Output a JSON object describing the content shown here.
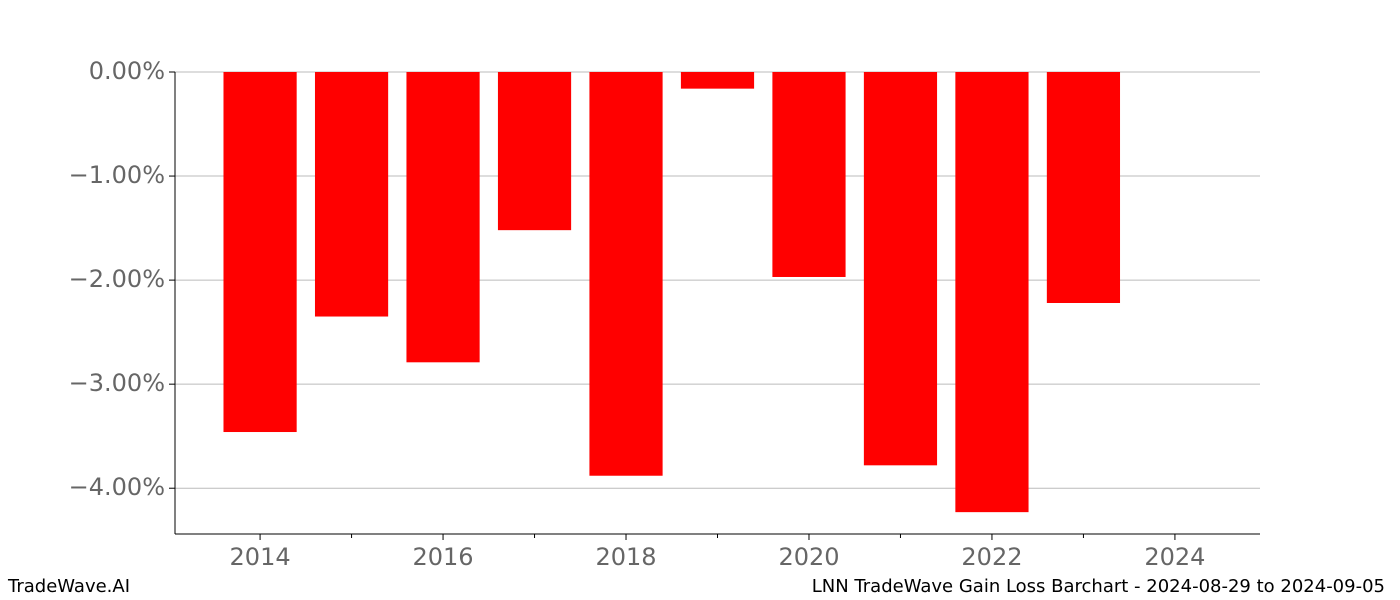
{
  "chart_data": {
    "type": "bar",
    "title": "LNN TradeWave Gain Loss Barchart - 2024-08-29 to 2024-09-05",
    "brand": "TradeWave.AI",
    "x": [
      2014,
      2015,
      2016,
      2017,
      2018,
      2019,
      2020,
      2021,
      2022,
      2023
    ],
    "values": [
      -3.46,
      -2.35,
      -2.79,
      -1.52,
      -3.88,
      -0.16,
      -1.97,
      -3.78,
      -4.23,
      -2.22
    ],
    "color": "#ff0000",
    "bar_width": 0.8,
    "xlim": [
      2013.07,
      2024.93
    ],
    "xticks": [
      2014,
      2016,
      2018,
      2020,
      2022,
      2024
    ],
    "minor_xticks": [
      2015,
      2017,
      2019,
      2021,
      2023
    ],
    "ylim": [
      -4.44,
      0
    ],
    "yticks": [
      {
        "value": 0,
        "label": "0.00%"
      },
      {
        "value": -1,
        "label": "−1.00%"
      },
      {
        "value": -2,
        "label": "−2.00%"
      },
      {
        "value": -3,
        "label": "−3.00%"
      },
      {
        "value": -4,
        "label": "−4.00%"
      }
    ],
    "grid": true
  }
}
